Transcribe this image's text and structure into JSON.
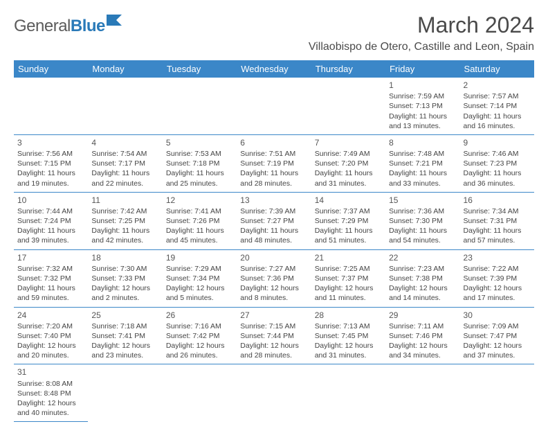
{
  "logo": {
    "text1": "General",
    "text2": "Blue"
  },
  "title": "March 2024",
  "location": "Villaobispo de Otero, Castille and Leon, Spain",
  "dayHeaders": [
    "Sunday",
    "Monday",
    "Tuesday",
    "Wednesday",
    "Thursday",
    "Friday",
    "Saturday"
  ],
  "colors": {
    "headerBg": "#3b87c8",
    "headerText": "#ffffff",
    "logoGray": "#5b5b5b",
    "logoBlue": "#2a7ab8",
    "titleColor": "#4a4a4a",
    "cellBorder": "#3b87c8"
  },
  "weeks": [
    [
      null,
      null,
      null,
      null,
      null,
      {
        "n": "1",
        "sr": "Sunrise: 7:59 AM",
        "ss": "Sunset: 7:13 PM",
        "dl": "Daylight: 11 hours and 13 minutes."
      },
      {
        "n": "2",
        "sr": "Sunrise: 7:57 AM",
        "ss": "Sunset: 7:14 PM",
        "dl": "Daylight: 11 hours and 16 minutes."
      }
    ],
    [
      {
        "n": "3",
        "sr": "Sunrise: 7:56 AM",
        "ss": "Sunset: 7:15 PM",
        "dl": "Daylight: 11 hours and 19 minutes."
      },
      {
        "n": "4",
        "sr": "Sunrise: 7:54 AM",
        "ss": "Sunset: 7:17 PM",
        "dl": "Daylight: 11 hours and 22 minutes."
      },
      {
        "n": "5",
        "sr": "Sunrise: 7:53 AM",
        "ss": "Sunset: 7:18 PM",
        "dl": "Daylight: 11 hours and 25 minutes."
      },
      {
        "n": "6",
        "sr": "Sunrise: 7:51 AM",
        "ss": "Sunset: 7:19 PM",
        "dl": "Daylight: 11 hours and 28 minutes."
      },
      {
        "n": "7",
        "sr": "Sunrise: 7:49 AM",
        "ss": "Sunset: 7:20 PM",
        "dl": "Daylight: 11 hours and 31 minutes."
      },
      {
        "n": "8",
        "sr": "Sunrise: 7:48 AM",
        "ss": "Sunset: 7:21 PM",
        "dl": "Daylight: 11 hours and 33 minutes."
      },
      {
        "n": "9",
        "sr": "Sunrise: 7:46 AM",
        "ss": "Sunset: 7:23 PM",
        "dl": "Daylight: 11 hours and 36 minutes."
      }
    ],
    [
      {
        "n": "10",
        "sr": "Sunrise: 7:44 AM",
        "ss": "Sunset: 7:24 PM",
        "dl": "Daylight: 11 hours and 39 minutes."
      },
      {
        "n": "11",
        "sr": "Sunrise: 7:42 AM",
        "ss": "Sunset: 7:25 PM",
        "dl": "Daylight: 11 hours and 42 minutes."
      },
      {
        "n": "12",
        "sr": "Sunrise: 7:41 AM",
        "ss": "Sunset: 7:26 PM",
        "dl": "Daylight: 11 hours and 45 minutes."
      },
      {
        "n": "13",
        "sr": "Sunrise: 7:39 AM",
        "ss": "Sunset: 7:27 PM",
        "dl": "Daylight: 11 hours and 48 minutes."
      },
      {
        "n": "14",
        "sr": "Sunrise: 7:37 AM",
        "ss": "Sunset: 7:29 PM",
        "dl": "Daylight: 11 hours and 51 minutes."
      },
      {
        "n": "15",
        "sr": "Sunrise: 7:36 AM",
        "ss": "Sunset: 7:30 PM",
        "dl": "Daylight: 11 hours and 54 minutes."
      },
      {
        "n": "16",
        "sr": "Sunrise: 7:34 AM",
        "ss": "Sunset: 7:31 PM",
        "dl": "Daylight: 11 hours and 57 minutes."
      }
    ],
    [
      {
        "n": "17",
        "sr": "Sunrise: 7:32 AM",
        "ss": "Sunset: 7:32 PM",
        "dl": "Daylight: 11 hours and 59 minutes."
      },
      {
        "n": "18",
        "sr": "Sunrise: 7:30 AM",
        "ss": "Sunset: 7:33 PM",
        "dl": "Daylight: 12 hours and 2 minutes."
      },
      {
        "n": "19",
        "sr": "Sunrise: 7:29 AM",
        "ss": "Sunset: 7:34 PM",
        "dl": "Daylight: 12 hours and 5 minutes."
      },
      {
        "n": "20",
        "sr": "Sunrise: 7:27 AM",
        "ss": "Sunset: 7:36 PM",
        "dl": "Daylight: 12 hours and 8 minutes."
      },
      {
        "n": "21",
        "sr": "Sunrise: 7:25 AM",
        "ss": "Sunset: 7:37 PM",
        "dl": "Daylight: 12 hours and 11 minutes."
      },
      {
        "n": "22",
        "sr": "Sunrise: 7:23 AM",
        "ss": "Sunset: 7:38 PM",
        "dl": "Daylight: 12 hours and 14 minutes."
      },
      {
        "n": "23",
        "sr": "Sunrise: 7:22 AM",
        "ss": "Sunset: 7:39 PM",
        "dl": "Daylight: 12 hours and 17 minutes."
      }
    ],
    [
      {
        "n": "24",
        "sr": "Sunrise: 7:20 AM",
        "ss": "Sunset: 7:40 PM",
        "dl": "Daylight: 12 hours and 20 minutes."
      },
      {
        "n": "25",
        "sr": "Sunrise: 7:18 AM",
        "ss": "Sunset: 7:41 PM",
        "dl": "Daylight: 12 hours and 23 minutes."
      },
      {
        "n": "26",
        "sr": "Sunrise: 7:16 AM",
        "ss": "Sunset: 7:42 PM",
        "dl": "Daylight: 12 hours and 26 minutes."
      },
      {
        "n": "27",
        "sr": "Sunrise: 7:15 AM",
        "ss": "Sunset: 7:44 PM",
        "dl": "Daylight: 12 hours and 28 minutes."
      },
      {
        "n": "28",
        "sr": "Sunrise: 7:13 AM",
        "ss": "Sunset: 7:45 PM",
        "dl": "Daylight: 12 hours and 31 minutes."
      },
      {
        "n": "29",
        "sr": "Sunrise: 7:11 AM",
        "ss": "Sunset: 7:46 PM",
        "dl": "Daylight: 12 hours and 34 minutes."
      },
      {
        "n": "30",
        "sr": "Sunrise: 7:09 AM",
        "ss": "Sunset: 7:47 PM",
        "dl": "Daylight: 12 hours and 37 minutes."
      }
    ],
    [
      {
        "n": "31",
        "sr": "Sunrise: 8:08 AM",
        "ss": "Sunset: 8:48 PM",
        "dl": "Daylight: 12 hours and 40 minutes."
      },
      null,
      null,
      null,
      null,
      null,
      null
    ]
  ]
}
